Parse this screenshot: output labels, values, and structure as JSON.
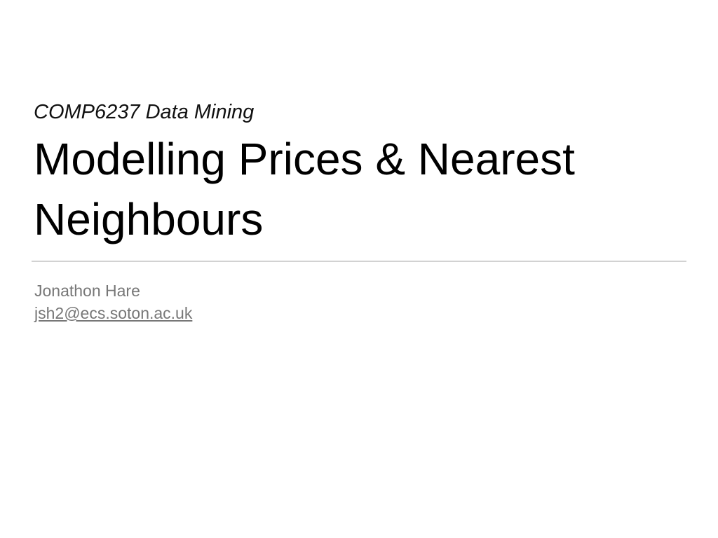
{
  "slide": {
    "course": "COMP6237 Data Mining",
    "title_lines": [
      "Modelling Prices & Nearest",
      "Neighbours"
    ],
    "author": "Jonathon Hare",
    "email": "jsh2@ecs.soton.ac.uk"
  },
  "colors": {
    "background": "#ffffff",
    "title": "#000000",
    "subtitle": "#777777",
    "divider": "#d2d2d2"
  }
}
